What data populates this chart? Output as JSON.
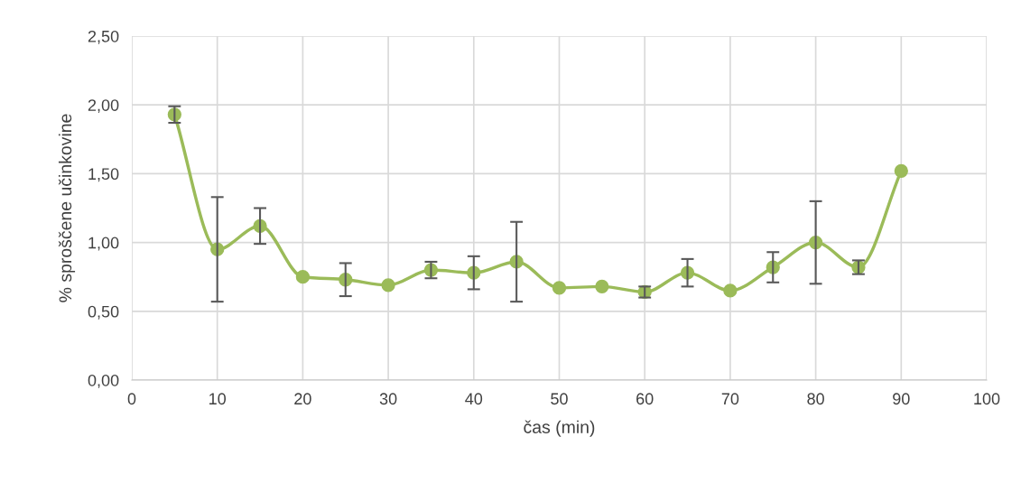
{
  "chart_data": {
    "type": "line",
    "xlabel": "čas (min)",
    "ylabel": "% sproščene učinkovine",
    "x": [
      5,
      10,
      15,
      20,
      25,
      30,
      35,
      40,
      45,
      50,
      55,
      60,
      65,
      70,
      75,
      80,
      85,
      90
    ],
    "series": [
      {
        "color": "#9bbb59",
        "values": [
          1.93,
          0.95,
          1.12,
          0.75,
          0.73,
          0.69,
          0.8,
          0.78,
          0.86,
          0.67,
          0.68,
          0.64,
          0.78,
          0.65,
          0.82,
          1.0,
          0.82,
          1.52
        ],
        "errors": [
          0.06,
          0.38,
          0.13,
          null,
          0.12,
          null,
          0.06,
          0.12,
          0.29,
          null,
          null,
          0.04,
          0.1,
          null,
          0.11,
          0.3,
          0.05,
          null
        ]
      }
    ],
    "xlim": [
      0,
      100
    ],
    "xticks": [
      0,
      10,
      20,
      30,
      40,
      50,
      60,
      70,
      80,
      90,
      100
    ],
    "ylim": [
      0,
      2.5
    ],
    "yticks": [
      {
        "value": 0,
        "label": "0,00"
      },
      {
        "value": 0.5,
        "label": "0,50"
      },
      {
        "value": 1.0,
        "label": "1,00"
      },
      {
        "value": 1.5,
        "label": "1,50"
      },
      {
        "value": 2.0,
        "label": "2,00"
      },
      {
        "value": 2.5,
        "label": "2,50"
      }
    ],
    "grid": true,
    "marker": "circle",
    "line_style": "solid"
  }
}
